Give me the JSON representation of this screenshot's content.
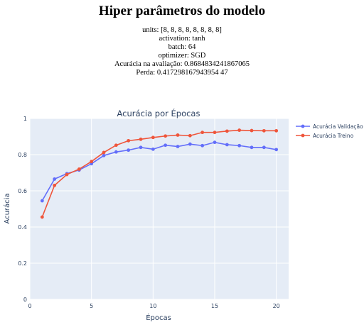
{
  "header": {
    "title": "Hiper parâmetros do modelo",
    "lines": [
      "units: [8, 8, 8, 8, 8, 8, 8, 8]",
      "activation: tanh",
      "batch: 64",
      "optimizer: SGD",
      "Acurácia na avaliação: 0.8684834241867065",
      "Perda: 0.417298167943954 47"
    ]
  },
  "chart_data": {
    "type": "line",
    "title": "Acurácia por Épocas",
    "xlabel": "Épocas",
    "ylabel": "Acurácia",
    "x": [
      1,
      2,
      3,
      4,
      5,
      6,
      7,
      8,
      9,
      10,
      11,
      12,
      13,
      14,
      15,
      16,
      17,
      18,
      19,
      20
    ],
    "xlim": [
      0,
      21
    ],
    "ylim": [
      0,
      1
    ],
    "xticks": [
      0,
      5,
      10,
      15,
      20
    ],
    "yticks": [
      0,
      0.2,
      0.4,
      0.6,
      0.8,
      1
    ],
    "grid": true,
    "legend_position": "top-right",
    "series": [
      {
        "name": "Acurácia Validação",
        "color": "#636efa",
        "values": [
          0.545,
          0.665,
          0.695,
          0.715,
          0.75,
          0.795,
          0.815,
          0.825,
          0.84,
          0.83,
          0.852,
          0.845,
          0.858,
          0.85,
          0.868,
          0.855,
          0.85,
          0.84,
          0.84,
          0.828
        ]
      },
      {
        "name": "Acurácia Treino",
        "color": "#ef553b",
        "values": [
          0.455,
          0.63,
          0.69,
          0.72,
          0.762,
          0.812,
          0.852,
          0.877,
          0.885,
          0.895,
          0.903,
          0.908,
          0.905,
          0.923,
          0.923,
          0.93,
          0.935,
          0.933,
          0.932,
          0.932
        ]
      }
    ]
  }
}
